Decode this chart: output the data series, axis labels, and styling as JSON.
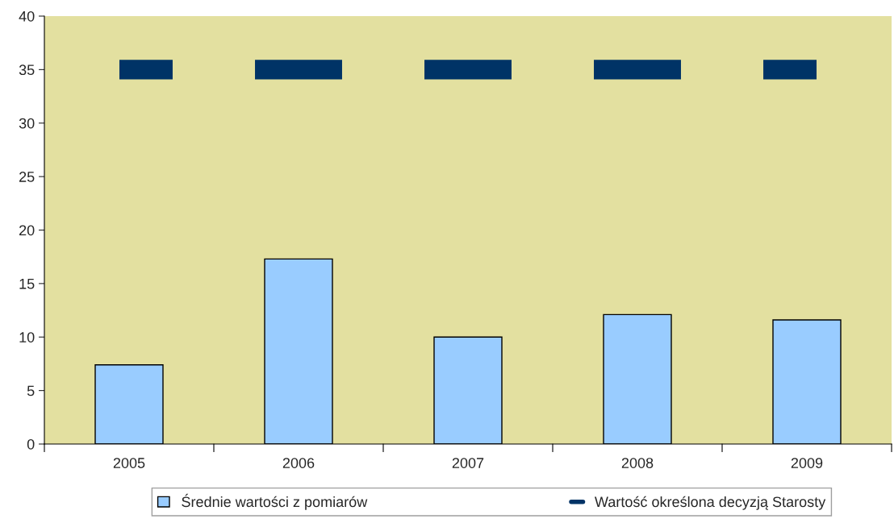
{
  "chart_data": {
    "type": "bar",
    "categories": [
      "2005",
      "2006",
      "2007",
      "2008",
      "2009"
    ],
    "series": [
      {
        "name": "Średnie wartości z pomiarów",
        "color": "#99ccff",
        "values": [
          7.4,
          17.3,
          10,
          12.1,
          11.6
        ]
      },
      {
        "name": "Wartość określona decyzją Starosty",
        "type": "line",
        "line_style": "dashed",
        "color": "#003366",
        "values": [
          35,
          35,
          35,
          35,
          35
        ]
      }
    ],
    "ylim": [
      0,
      40
    ],
    "yticks": [
      0,
      5,
      10,
      15,
      20,
      25,
      30,
      35,
      40
    ],
    "grid": false,
    "legend": "bottom"
  }
}
